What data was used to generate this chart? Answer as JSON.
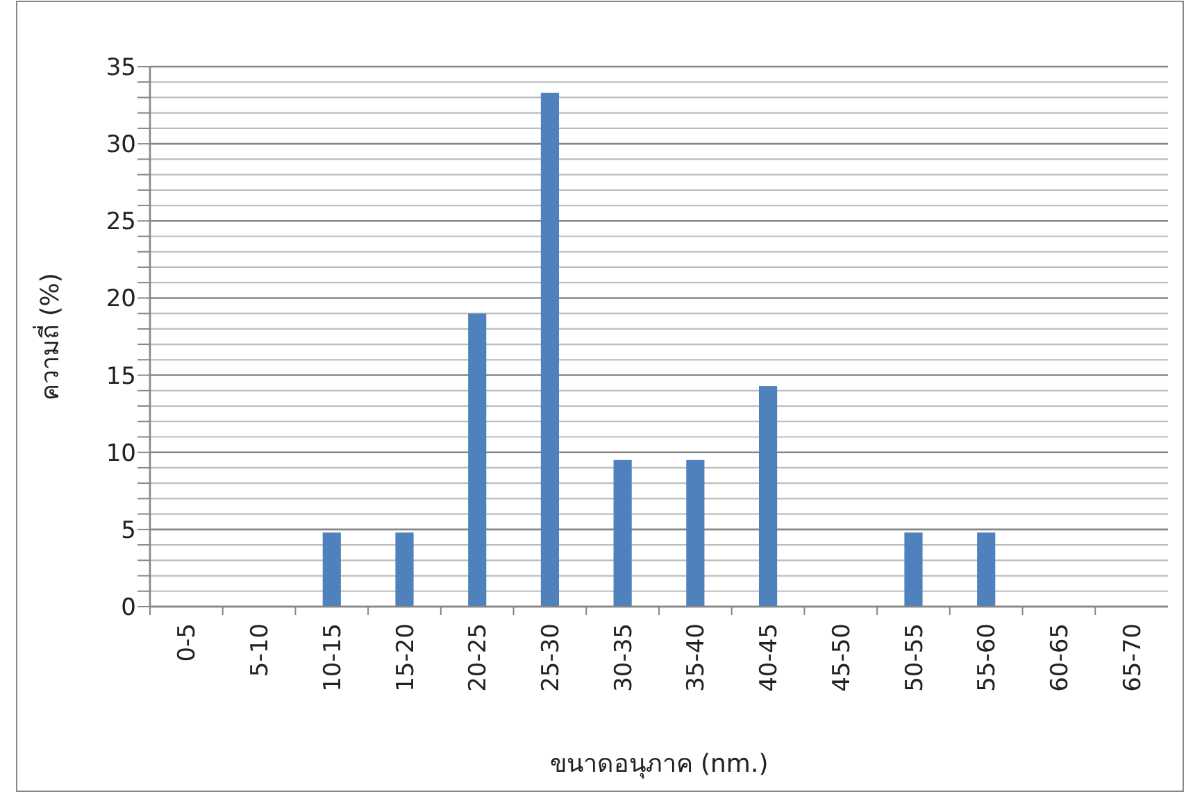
{
  "chart_data": {
    "type": "bar",
    "xlabel": "ขนาดอนุภาค (nm.)",
    "ylabel": "ความถี่ (%)",
    "categories": [
      "0-5",
      "5-10",
      "10-15",
      "15-20",
      "20-25",
      "25-30",
      "30-35",
      "35-40",
      "40-45",
      "45-50",
      "50-55",
      "55-60",
      "60-65",
      "65-70"
    ],
    "values": [
      0,
      0,
      4.8,
      4.8,
      19,
      33.3,
      9.5,
      9.5,
      14.3,
      0,
      4.8,
      4.8,
      0,
      0
    ],
    "color": "#4f81bd",
    "ylim": [
      0,
      35
    ],
    "yticks": [
      0,
      {
        "value": 1,
        "label": null
      },
      {
        "value": 2,
        "label": null
      },
      {
        "value": 3,
        "label": null
      },
      {
        "value": 4,
        "label": null
      },
      5,
      {
        "value": 6,
        "label": null
      },
      {
        "value": 7,
        "label": null
      },
      {
        "value": 8,
        "label": null
      },
      {
        "value": 9,
        "label": null
      },
      10,
      {
        "value": 11,
        "label": null
      },
      {
        "value": 12,
        "label": null
      },
      {
        "value": 13,
        "label": null
      },
      {
        "value": 14,
        "label": null
      },
      15,
      {
        "value": 16,
        "label": null
      },
      {
        "value": 17,
        "label": null
      },
      {
        "value": 18,
        "label": null
      },
      {
        "value": 19,
        "label": null
      },
      20,
      {
        "value": 21,
        "label": null
      },
      {
        "value": 22,
        "label": null
      },
      {
        "value": 23,
        "label": null
      },
      {
        "value": 24,
        "label": null
      },
      25,
      {
        "value": 26,
        "label": null
      },
      {
        "value": 27,
        "label": null
      },
      {
        "value": 28,
        "label": null
      },
      {
        "value": 29,
        "label": null
      },
      30,
      {
        "value": 31,
        "label": null
      },
      {
        "value": 32,
        "label": null
      },
      {
        "value": 33,
        "label": null
      },
      {
        "value": 34,
        "label": null
      },
      35
    ],
    "grid": "y"
  }
}
